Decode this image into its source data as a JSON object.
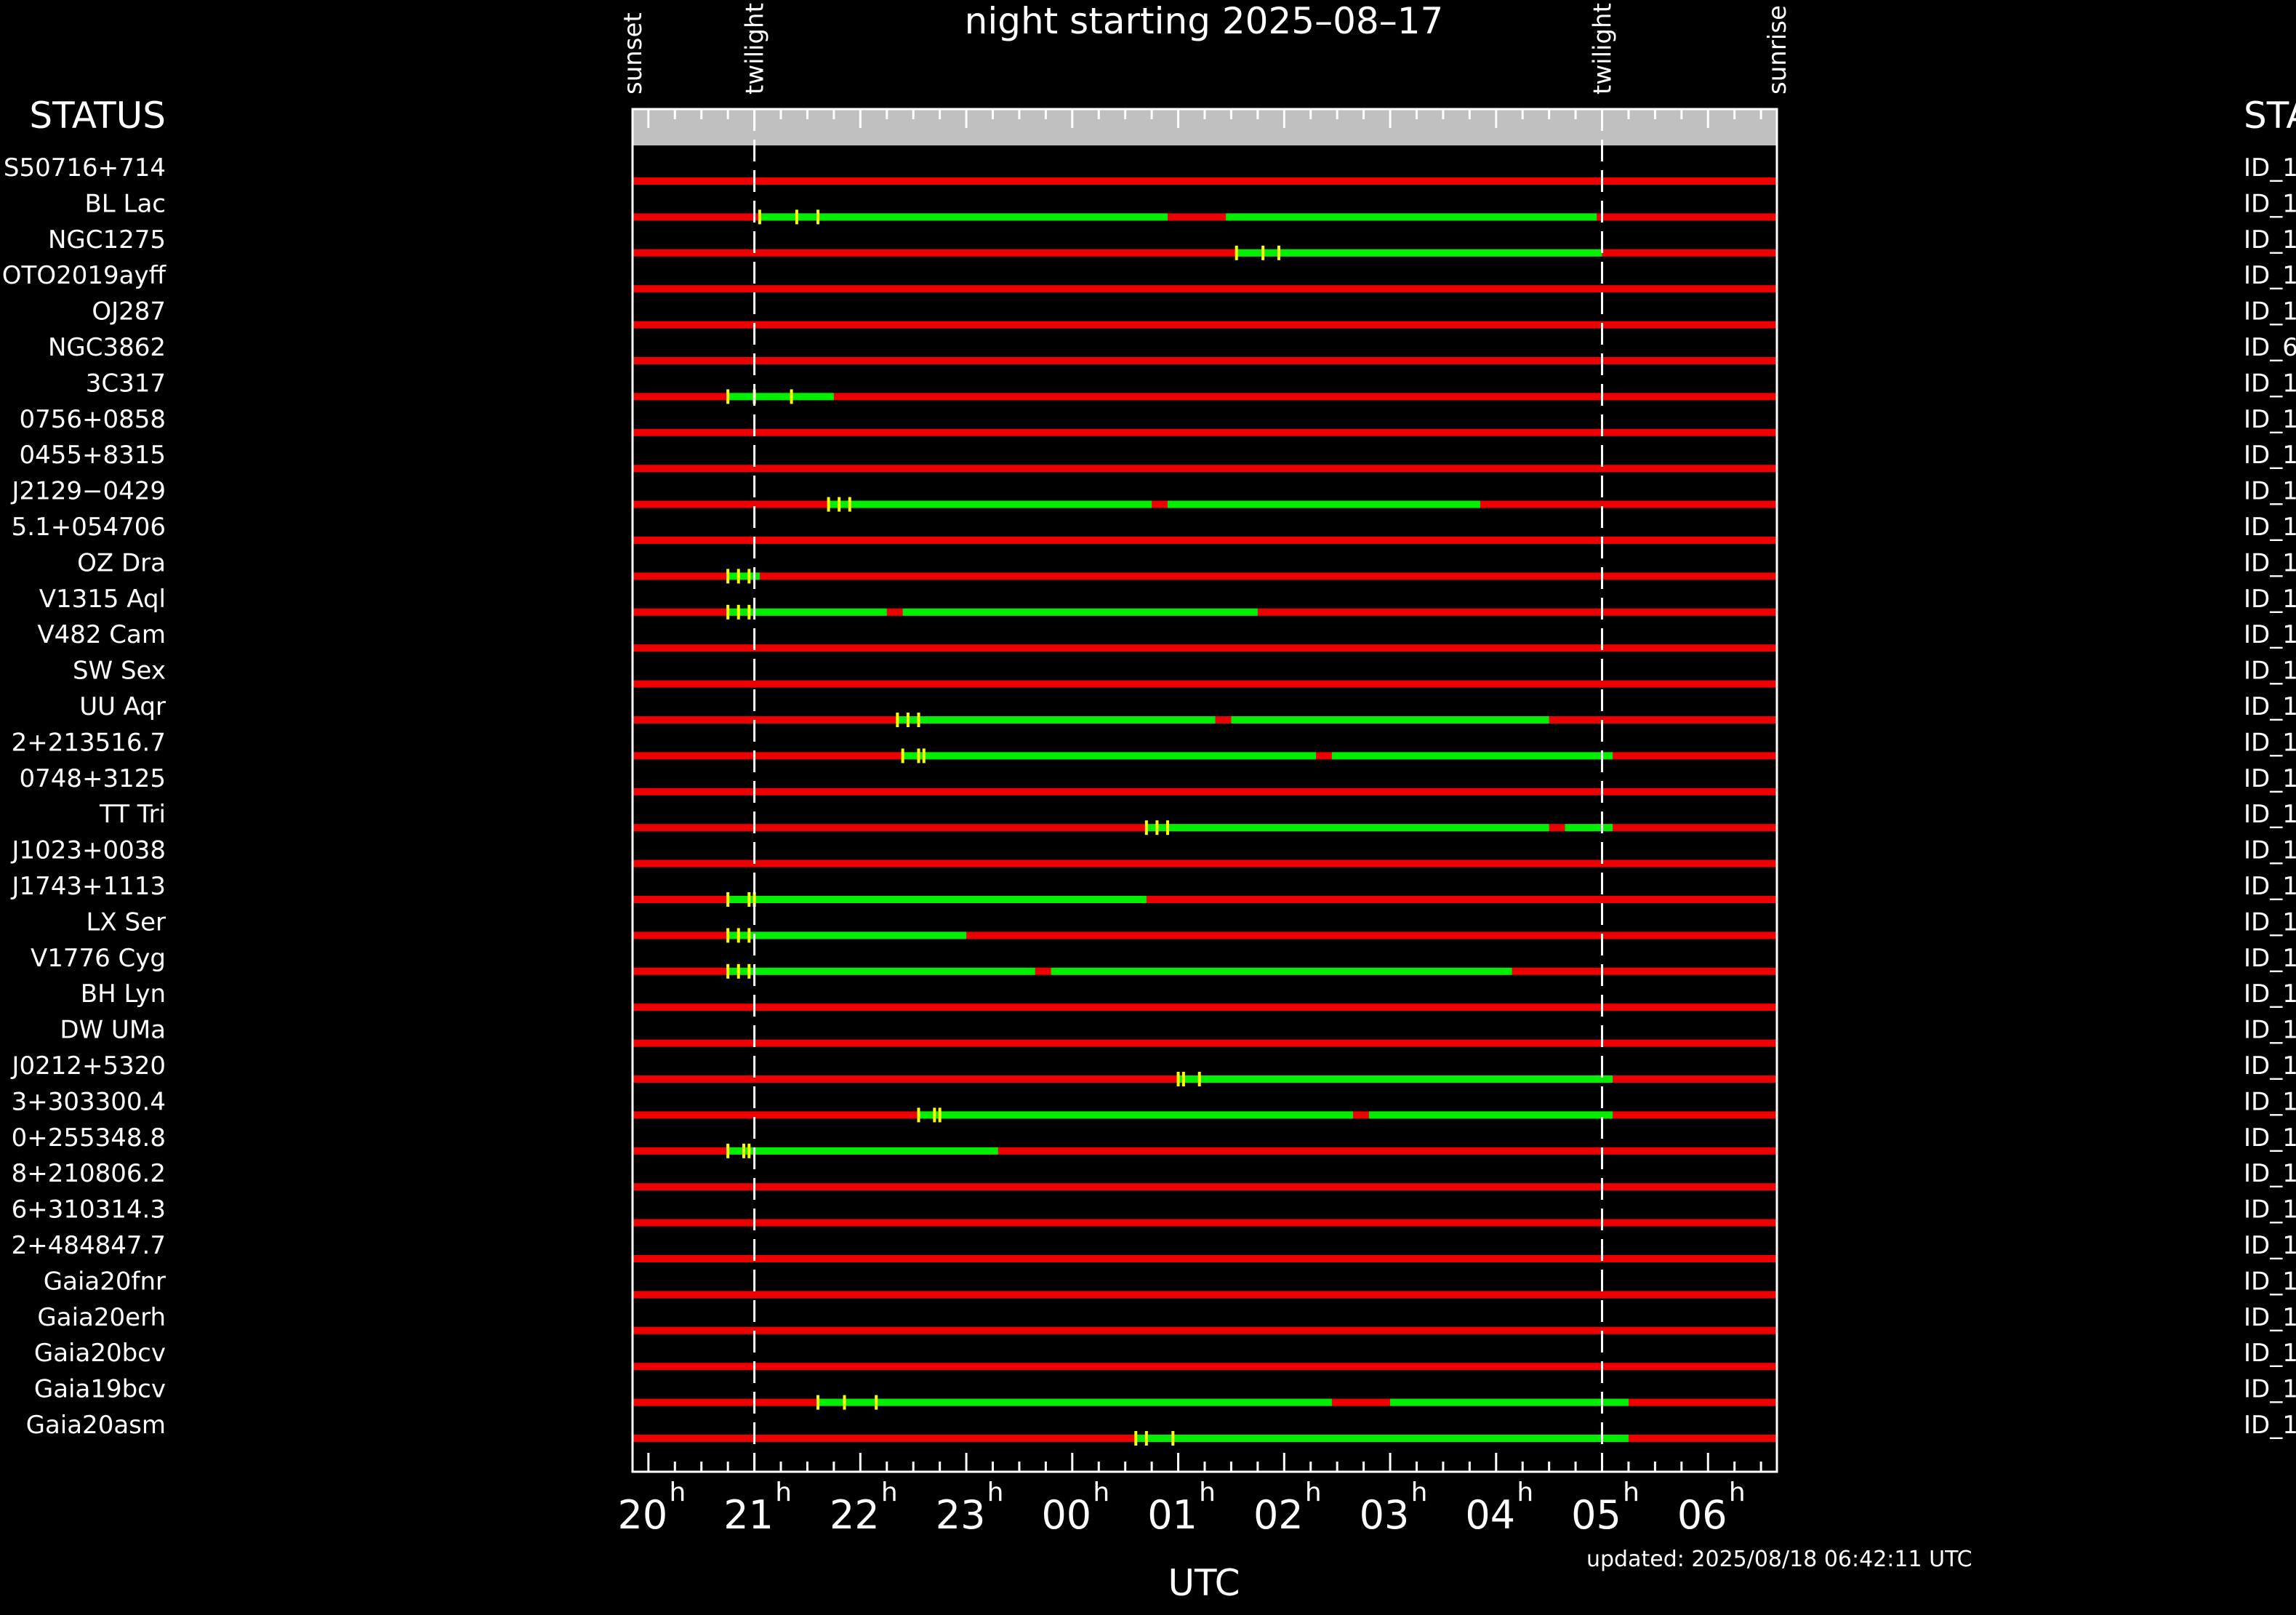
{
  "page": {
    "title": "night starting 2025–08–17",
    "status_header_left": "STATUS",
    "status_header_right": "STA",
    "x_axis_label": "UTC",
    "updated": "updated: 2025/08/18 06:42:11 UTC"
  },
  "chart_data": {
    "type": "timeline",
    "title": "night starting 2025–08–17",
    "xlabel": "UTC",
    "x_unit": "hours UTC (continuing past midnight as 24+)",
    "xlim": [
      19.85,
      30.65
    ],
    "ticks": [
      {
        "label": "20",
        "value": 20
      },
      {
        "label": "21",
        "value": 21
      },
      {
        "label": "22",
        "value": 22
      },
      {
        "label": "23",
        "value": 23
      },
      {
        "label": "00",
        "value": 24
      },
      {
        "label": "01",
        "value": 25
      },
      {
        "label": "02",
        "value": 26
      },
      {
        "label": "03",
        "value": 27
      },
      {
        "label": "04",
        "value": 28
      },
      {
        "label": "05",
        "value": 29
      },
      {
        "label": "06",
        "value": 30
      }
    ],
    "tick_superscript": "h",
    "events": [
      {
        "label": "sunset",
        "time": 19.85
      },
      {
        "label": "twilight",
        "time": 21.0
      },
      {
        "label": "twilight",
        "time": 29.0
      },
      {
        "label": "sunrise",
        "time": 30.65
      }
    ],
    "dashed_lines": [
      21.0,
      29.0
    ],
    "colors": {
      "unobservable": "#ee0000",
      "observable": "#00ee00",
      "marker": "#ffff00",
      "header_band": "#c0c0c0",
      "background": "#000000",
      "axes": "#ffffff"
    },
    "targets": [
      {
        "name": "S50716+714",
        "right_label": "ID_1",
        "green": [],
        "markers": []
      },
      {
        "name": "BL Lac",
        "right_label": "ID_1",
        "green": [
          [
            21.05,
            24.9
          ],
          [
            25.45,
            28.95
          ]
        ],
        "markers": [
          21.05,
          21.4,
          21.6
        ]
      },
      {
        "name": "NGC1275",
        "right_label": "ID_1",
        "green": [
          [
            25.55,
            29.0
          ]
        ],
        "markers": [
          25.55,
          25.8,
          25.95
        ]
      },
      {
        "name": "OTO2019ayff",
        "right_label": "ID_1",
        "green": [],
        "markers": []
      },
      {
        "name": "OJ287",
        "right_label": "ID_1",
        "green": [],
        "markers": []
      },
      {
        "name": "NGC3862",
        "right_label": "ID_6",
        "green": [],
        "markers": []
      },
      {
        "name": "3C317",
        "right_label": "ID_1",
        "green": [
          [
            20.75,
            21.75
          ]
        ],
        "markers": [
          20.75,
          21.0,
          21.35
        ]
      },
      {
        "name": "0756+0858",
        "right_label": "ID_1",
        "green": [],
        "markers": []
      },
      {
        "name": "0455+8315",
        "right_label": "ID_1",
        "green": [],
        "markers": []
      },
      {
        "name": "J2129−0429",
        "right_label": "ID_1",
        "green": [
          [
            21.7,
            24.75
          ],
          [
            24.9,
            27.85
          ]
        ],
        "markers": [
          21.7,
          21.8,
          21.9
        ]
      },
      {
        "name": "5.1+054706",
        "right_label": "ID_1",
        "green": [],
        "markers": []
      },
      {
        "name": "OZ Dra",
        "right_label": "ID_1",
        "green": [
          [
            20.75,
            21.05
          ]
        ],
        "markers": [
          20.75,
          20.85,
          20.95
        ]
      },
      {
        "name": "V1315 Aql",
        "right_label": "ID_1",
        "green": [
          [
            20.75,
            22.25
          ],
          [
            22.4,
            25.75
          ]
        ],
        "markers": [
          20.75,
          20.85,
          20.95
        ]
      },
      {
        "name": "V482 Cam",
        "right_label": "ID_1",
        "green": [],
        "markers": []
      },
      {
        "name": "SW Sex",
        "right_label": "ID_1",
        "green": [],
        "markers": []
      },
      {
        "name": "UU Aqr",
        "right_label": "ID_1",
        "green": [
          [
            22.35,
            25.35
          ],
          [
            25.5,
            28.5
          ]
        ],
        "markers": [
          22.35,
          22.45,
          22.55
        ]
      },
      {
        "name": "2+213516.7",
        "right_label": "ID_1",
        "green": [
          [
            22.4,
            26.3
          ],
          [
            26.45,
            29.1
          ]
        ],
        "markers": [
          22.4,
          22.55,
          22.6
        ]
      },
      {
        "name": "0748+3125",
        "right_label": "ID_1",
        "green": [],
        "markers": []
      },
      {
        "name": "TT Tri",
        "right_label": "ID_1",
        "green": [
          [
            24.7,
            28.5
          ],
          [
            28.65,
            29.1
          ]
        ],
        "markers": [
          24.7,
          24.8,
          24.9
        ]
      },
      {
        "name": "J1023+0038",
        "right_label": "ID_1",
        "green": [],
        "markers": []
      },
      {
        "name": "J1743+1113",
        "right_label": "ID_1",
        "green": [
          [
            20.75,
            24.7
          ]
        ],
        "markers": [
          20.75,
          20.95,
          21.0
        ]
      },
      {
        "name": "LX Ser",
        "right_label": "ID_1",
        "green": [
          [
            20.75,
            23.0
          ]
        ],
        "markers": [
          20.75,
          20.85,
          20.95
        ]
      },
      {
        "name": "V1776 Cyg",
        "right_label": "ID_1",
        "green": [
          [
            20.75,
            23.65
          ],
          [
            23.8,
            28.15
          ]
        ],
        "markers": [
          20.75,
          20.85,
          20.95
        ]
      },
      {
        "name": "BH Lyn",
        "right_label": "ID_1",
        "green": [],
        "markers": []
      },
      {
        "name": "DW UMa",
        "right_label": "ID_1",
        "green": [],
        "markers": []
      },
      {
        "name": "J0212+5320",
        "right_label": "ID_1",
        "green": [
          [
            25.0,
            29.1
          ]
        ],
        "markers": [
          25.0,
          25.05,
          25.2
        ]
      },
      {
        "name": "3+303300.4",
        "right_label": "ID_1",
        "green": [
          [
            22.55,
            26.65
          ],
          [
            26.8,
            29.1
          ]
        ],
        "markers": [
          22.55,
          22.7,
          22.75
        ]
      },
      {
        "name": "0+255348.8",
        "right_label": "ID_1",
        "green": [
          [
            20.75,
            23.3
          ]
        ],
        "markers": [
          20.75,
          20.9,
          20.95
        ]
      },
      {
        "name": "8+210806.2",
        "right_label": "ID_1",
        "green": [],
        "markers": []
      },
      {
        "name": "6+310314.3",
        "right_label": "ID_1",
        "green": [],
        "markers": []
      },
      {
        "name": "2+484847.7",
        "right_label": "ID_1",
        "green": [],
        "markers": []
      },
      {
        "name": "Gaia20fnr",
        "right_label": "ID_1",
        "green": [],
        "markers": []
      },
      {
        "name": "Gaia20erh",
        "right_label": "ID_1",
        "green": [],
        "markers": []
      },
      {
        "name": "Gaia20bcv",
        "right_label": "ID_1",
        "green": [],
        "markers": []
      },
      {
        "name": "Gaia19bcv",
        "right_label": "ID_1",
        "green": [
          [
            21.6,
            26.45
          ],
          [
            27.0,
            29.25
          ]
        ],
        "markers": [
          21.6,
          21.85,
          22.15
        ]
      },
      {
        "name": "Gaia20asm",
        "right_label": "ID_1",
        "green": [
          [
            24.6,
            29.25
          ]
        ],
        "markers": [
          24.6,
          24.7,
          24.95
        ]
      }
    ]
  }
}
